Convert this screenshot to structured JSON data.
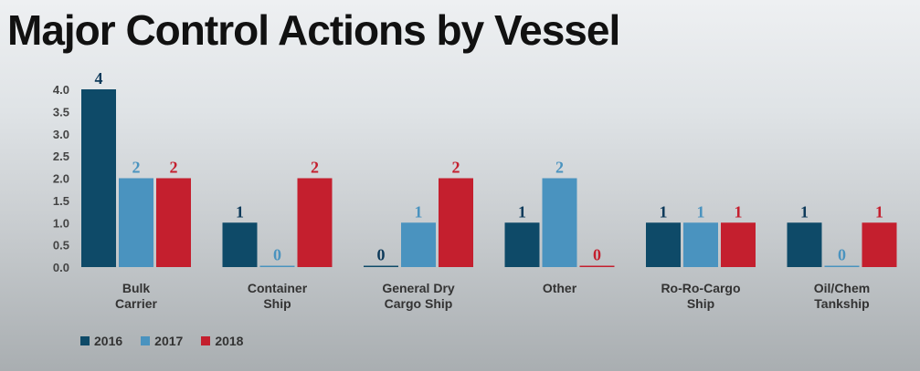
{
  "title": "Major Control Actions by Vessel",
  "chart_data": {
    "type": "bar",
    "categories": [
      [
        "Bulk",
        "Carrier"
      ],
      [
        "Container",
        "Ship"
      ],
      [
        "General Dry",
        "Cargo Ship"
      ],
      [
        "Other"
      ],
      [
        "Ro-Ro-Cargo",
        "Ship"
      ],
      [
        "Oil/Chem",
        "Tankship"
      ]
    ],
    "series": [
      {
        "name": "2016",
        "color": "#0e4a68",
        "label_color": "#0e3a5a",
        "values": [
          4,
          1,
          0,
          1,
          1,
          1
        ]
      },
      {
        "name": "2017",
        "color": "#4a93bf",
        "label_color": "#4a93bf",
        "values": [
          2,
          0,
          1,
          2,
          1,
          0
        ]
      },
      {
        "name": "2018",
        "color": "#c41f2e",
        "label_color": "#c41f2e",
        "values": [
          2,
          2,
          2,
          0,
          1,
          1
        ]
      }
    ],
    "yticks": [
      "0.0",
      "0.5",
      "1.0",
      "1.5",
      "2.0",
      "2.5",
      "3.0",
      "3.5",
      "4.0"
    ],
    "ylim": [
      0,
      4
    ],
    "grid": false,
    "legend_position": "bottom-left"
  }
}
